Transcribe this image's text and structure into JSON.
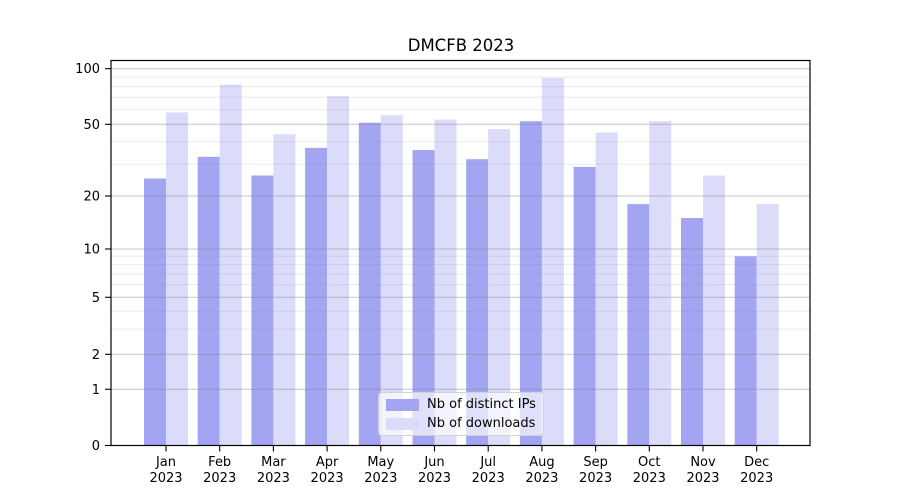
{
  "page": {
    "background": "#ffffff"
  },
  "chart_data": {
    "type": "bar",
    "title": "DMCFB 2023",
    "categories": [
      "Jan",
      "Feb",
      "Mar",
      "Apr",
      "May",
      "Jun",
      "Jul",
      "Aug",
      "Sep",
      "Oct",
      "Nov",
      "Dec"
    ],
    "year_label": "2023",
    "series": [
      {
        "name": "Nb of distinct IPs",
        "color": "#a3a5f2",
        "values": [
          25,
          33,
          26,
          37,
          51,
          36,
          32,
          52,
          29,
          18,
          15,
          9
        ]
      },
      {
        "name": "Nb of downloads",
        "color": "#dbdcf9",
        "values": [
          58,
          82,
          44,
          71,
          56,
          53,
          47,
          89,
          45,
          52,
          26,
          18
        ]
      }
    ],
    "xlabel": "",
    "ylabel": "",
    "yscale": "log-like (linear 0-1, log above)",
    "yticks": [
      0,
      1,
      2,
      5,
      10,
      20,
      50,
      100
    ],
    "minor_gridlines": [
      3,
      4,
      6,
      7,
      8,
      9,
      30,
      40,
      60,
      70,
      80,
      90
    ],
    "ylim": [
      0,
      110
    ],
    "grid": "horizontal major+minor",
    "legend_position": "lower-center-inside"
  },
  "colors": {
    "axis": "#000000",
    "grid": "#808080",
    "title_text": "#000000",
    "tick_text": "#000000"
  }
}
